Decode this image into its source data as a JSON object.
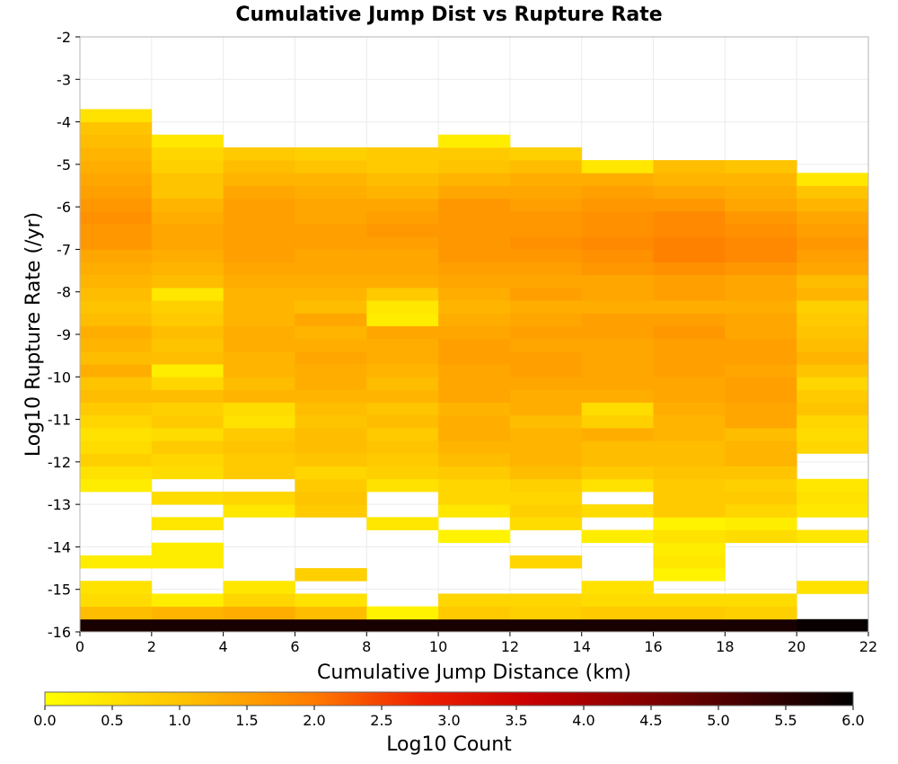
{
  "chart_data": {
    "type": "heatmap",
    "title": "Cumulative Jump Dist vs Rupture Rate",
    "xlabel": "Cumulative Jump Distance (km)",
    "ylabel": "Log10 Rupture Rate (/yr)",
    "xlim": [
      0,
      22
    ],
    "ylim": [
      -16,
      -2
    ],
    "x_ticks": [
      "0",
      "2",
      "4",
      "6",
      "8",
      "10",
      "12",
      "14",
      "16",
      "18",
      "20",
      "22"
    ],
    "y_ticks": [
      "-2",
      "-3",
      "-4",
      "-5",
      "-6",
      "-7",
      "-8",
      "-9",
      "-10",
      "-11",
      "-12",
      "-13",
      "-14",
      "-15",
      "-16"
    ],
    "x_bin_edges": [
      0,
      2,
      4,
      6,
      8,
      10,
      12,
      14,
      16,
      18,
      20,
      22
    ],
    "y_bin_width": 0.3,
    "bin_rows_note": "row 0 starts at rate -16.0; each row spans 0.3 log10 units",
    "values": [
      [
        5.7,
        5.7,
        5.7,
        5.7,
        5.7,
        5.7,
        5.7,
        5.7,
        5.7,
        5.7,
        5.9
      ],
      [
        1.1,
        1.2,
        1.3,
        1.1,
        0.2,
        0.9,
        0.8,
        0.9,
        0.9,
        0.8,
        null
      ],
      [
        0.6,
        0.3,
        0.7,
        0.5,
        null,
        0.7,
        0.7,
        0.6,
        0.6,
        0.6,
        null
      ],
      [
        0.5,
        null,
        0.4,
        null,
        null,
        null,
        null,
        0.5,
        null,
        null,
        0.5
      ],
      [
        null,
        null,
        null,
        0.8,
        null,
        null,
        null,
        null,
        0.2,
        null,
        null
      ],
      [
        0.3,
        0.3,
        null,
        null,
        null,
        null,
        0.7,
        null,
        0.4,
        null,
        null
      ],
      [
        null,
        0.3,
        null,
        null,
        null,
        null,
        null,
        null,
        0.3,
        null,
        null
      ],
      [
        null,
        null,
        null,
        null,
        null,
        0.2,
        null,
        0.3,
        0.5,
        0.6,
        0.4
      ],
      [
        null,
        0.4,
        null,
        null,
        0.4,
        null,
        0.6,
        null,
        0.2,
        0.3,
        null
      ],
      [
        null,
        null,
        0.4,
        0.9,
        null,
        0.4,
        0.8,
        0.6,
        0.9,
        0.7,
        0.4
      ],
      [
        null,
        0.6,
        0.7,
        1.0,
        null,
        0.7,
        0.7,
        null,
        0.9,
        0.9,
        0.5
      ],
      [
        0.3,
        null,
        null,
        0.9,
        0.5,
        0.7,
        0.8,
        0.5,
        0.9,
        0.8,
        0.4
      ],
      [
        0.5,
        0.6,
        0.9,
        0.7,
        0.8,
        0.9,
        1.1,
        0.9,
        1.0,
        1.0,
        null
      ],
      [
        0.8,
        0.7,
        0.9,
        1.0,
        0.9,
        1.1,
        1.2,
        1.1,
        1.1,
        1.2,
        null
      ],
      [
        0.6,
        0.9,
        1.0,
        1.1,
        1.0,
        1.2,
        1.2,
        1.1,
        1.1,
        1.2,
        0.7
      ],
      [
        0.5,
        0.6,
        0.9,
        1.1,
        0.9,
        1.3,
        1.2,
        1.3,
        1.2,
        1.1,
        0.6
      ],
      [
        0.7,
        0.9,
        0.5,
        1.0,
        1.1,
        1.3,
        1.1,
        0.8,
        1.2,
        1.4,
        0.7
      ],
      [
        0.9,
        0.8,
        0.6,
        1.1,
        1.0,
        1.2,
        1.3,
        0.6,
        1.3,
        1.4,
        1.0
      ],
      [
        1.1,
        1.1,
        1.2,
        1.2,
        1.2,
        1.4,
        1.3,
        1.3,
        1.4,
        1.5,
        0.9
      ],
      [
        1.0,
        0.7,
        1.1,
        1.3,
        1.1,
        1.4,
        1.4,
        1.4,
        1.4,
        1.5,
        0.7
      ],
      [
        1.3,
        0.3,
        1.2,
        1.3,
        1.2,
        1.4,
        1.5,
        1.4,
        1.5,
        1.4,
        1.0
      ],
      [
        1.1,
        1.1,
        1.2,
        1.4,
        1.3,
        1.5,
        1.5,
        1.4,
        1.5,
        1.5,
        1.2
      ],
      [
        1.2,
        1.0,
        1.3,
        1.3,
        1.3,
        1.5,
        1.4,
        1.4,
        1.5,
        1.5,
        1.1
      ],
      [
        1.3,
        1.1,
        1.3,
        1.2,
        1.4,
        1.4,
        1.5,
        1.5,
        1.6,
        1.4,
        1.0
      ],
      [
        1.1,
        0.9,
        1.2,
        1.4,
        0.3,
        1.3,
        1.4,
        1.5,
        1.5,
        1.4,
        0.9
      ],
      [
        1.0,
        0.8,
        1.2,
        1.1,
        0.4,
        1.2,
        1.3,
        1.3,
        1.3,
        1.3,
        0.8
      ],
      [
        1.1,
        0.4,
        1.2,
        1.2,
        0.9,
        1.3,
        1.5,
        1.4,
        1.5,
        1.4,
        1.2
      ],
      [
        1.2,
        1.1,
        1.3,
        1.3,
        1.3,
        1.4,
        1.4,
        1.4,
        1.5,
        1.4,
        1.1
      ],
      [
        1.3,
        1.2,
        1.4,
        1.4,
        1.4,
        1.5,
        1.5,
        1.6,
        1.7,
        1.6,
        1.4
      ],
      [
        1.4,
        1.3,
        1.5,
        1.4,
        1.4,
        1.6,
        1.6,
        1.7,
        1.9,
        1.8,
        1.5
      ],
      [
        1.6,
        1.4,
        1.5,
        1.5,
        1.5,
        1.6,
        1.7,
        1.8,
        1.9,
        1.8,
        1.6
      ],
      [
        1.6,
        1.4,
        1.5,
        1.5,
        1.6,
        1.6,
        1.6,
        1.7,
        1.8,
        1.7,
        1.5
      ],
      [
        1.7,
        1.3,
        1.5,
        1.4,
        1.5,
        1.6,
        1.6,
        1.7,
        1.8,
        1.6,
        1.4
      ],
      [
        1.6,
        1.2,
        1.5,
        1.4,
        1.4,
        1.6,
        1.5,
        1.6,
        1.6,
        1.4,
        1.2
      ],
      [
        1.5,
        1.0,
        1.4,
        1.3,
        1.2,
        1.4,
        1.4,
        1.5,
        1.4,
        1.3,
        1.0
      ],
      [
        1.4,
        1.0,
        1.2,
        1.2,
        1.1,
        1.2,
        1.3,
        1.3,
        1.2,
        1.2,
        0.4
      ],
      [
        1.3,
        0.8,
        1.1,
        1.0,
        0.9,
        1.0,
        1.1,
        0.4,
        1.1,
        1.0,
        null
      ],
      [
        1.2,
        0.7,
        0.9,
        0.8,
        0.9,
        0.9,
        0.8,
        null,
        null,
        null,
        null
      ],
      [
        1.1,
        0.4,
        null,
        null,
        null,
        0.3,
        null,
        null,
        null,
        null,
        null
      ],
      [
        1.0,
        null,
        null,
        null,
        null,
        null,
        null,
        null,
        null,
        null,
        null
      ],
      [
        0.5,
        null,
        null,
        null,
        null,
        null,
        null,
        null,
        null,
        null,
        null
      ]
    ],
    "colorbar": {
      "label": "Log10 Count",
      "range": [
        0,
        6
      ],
      "ticks": [
        "0.0",
        "0.5",
        "1.0",
        "1.5",
        "2.0",
        "2.5",
        "3.0",
        "3.5",
        "4.0",
        "4.5",
        "5.0",
        "5.5",
        "6.0"
      ],
      "colormap": [
        {
          "v": 0.0,
          "color": "#ffff00"
        },
        {
          "v": 1.0,
          "color": "#ffc400"
        },
        {
          "v": 2.0,
          "color": "#ff7a00"
        },
        {
          "v": 2.8,
          "color": "#ee2000"
        },
        {
          "v": 3.6,
          "color": "#c80000"
        },
        {
          "v": 4.5,
          "color": "#800000"
        },
        {
          "v": 5.3,
          "color": "#3a0000"
        },
        {
          "v": 6.0,
          "color": "#000000"
        }
      ]
    },
    "grid": true,
    "background": "#ffffff"
  }
}
